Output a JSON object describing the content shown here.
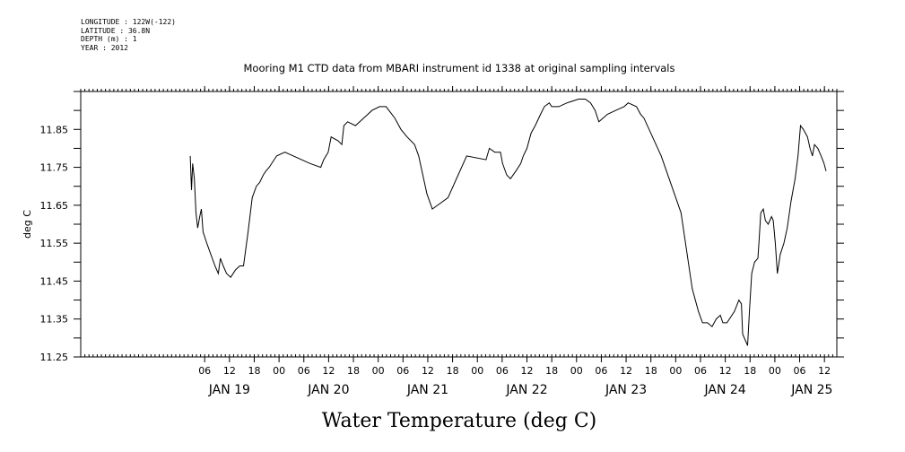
{
  "metadata": {
    "longitude": "LONGITUDE : 122W(-122)",
    "latitude": "LATITUDE : 36.8N",
    "depth": "DEPTH (m) : 1",
    "year": "YEAR : 2012"
  },
  "chart_data": {
    "type": "line",
    "title": "Mooring M1 CTD data from MBARI instrument id 1338 at original sampling intervals",
    "xlabel": "Water Temperature (deg C)",
    "ylabel": "deg C",
    "x_units": "hours since JAN 19 00:00",
    "xlim": [
      -24,
      159
    ],
    "ylim": [
      11.25,
      11.95
    ],
    "yticks": [
      11.25,
      11.35,
      11.45,
      11.55,
      11.65,
      11.75,
      11.85
    ],
    "ytick_labels": [
      "11.25",
      "11.35",
      "11.45",
      "11.55",
      "11.65",
      "11.75",
      "11.85"
    ],
    "hour_ticks": [
      {
        "x": 6,
        "label": "06"
      },
      {
        "x": 12,
        "label": "12"
      },
      {
        "x": 18,
        "label": "18"
      },
      {
        "x": 24,
        "label": "00"
      },
      {
        "x": 30,
        "label": "06"
      },
      {
        "x": 36,
        "label": "12"
      },
      {
        "x": 42,
        "label": "18"
      },
      {
        "x": 48,
        "label": "00"
      },
      {
        "x": 54,
        "label": "06"
      },
      {
        "x": 60,
        "label": "12"
      },
      {
        "x": 66,
        "label": "18"
      },
      {
        "x": 72,
        "label": "00"
      },
      {
        "x": 78,
        "label": "06"
      },
      {
        "x": 84,
        "label": "12"
      },
      {
        "x": 90,
        "label": "18"
      },
      {
        "x": 96,
        "label": "00"
      },
      {
        "x": 102,
        "label": "06"
      },
      {
        "x": 108,
        "label": "12"
      },
      {
        "x": 114,
        "label": "18"
      },
      {
        "x": 120,
        "label": "00"
      },
      {
        "x": 126,
        "label": "06"
      },
      {
        "x": 132,
        "label": "12"
      },
      {
        "x": 138,
        "label": "18"
      },
      {
        "x": 144,
        "label": "00"
      },
      {
        "x": 150,
        "label": "06"
      },
      {
        "x": 156,
        "label": "12"
      }
    ],
    "day_labels": [
      {
        "x": 12,
        "label": "JAN 19"
      },
      {
        "x": 36,
        "label": "JAN 20"
      },
      {
        "x": 60,
        "label": "JAN 21"
      },
      {
        "x": 84,
        "label": "JAN 22"
      },
      {
        "x": 108,
        "label": "JAN 23"
      },
      {
        "x": 132,
        "label": "JAN 24"
      },
      {
        "x": 153,
        "label": "JAN 25"
      }
    ],
    "grid": false,
    "series": [
      {
        "points": [
          [
            2.5,
            11.78
          ],
          [
            2.8,
            11.69
          ],
          [
            3.1,
            11.76
          ],
          [
            3.5,
            11.72
          ],
          [
            3.9,
            11.63
          ],
          [
            4.3,
            11.59
          ],
          [
            4.8,
            11.62
          ],
          [
            5.2,
            11.64
          ],
          [
            5.6,
            11.58
          ],
          [
            6.5,
            11.55
          ],
          [
            7.5,
            11.52
          ],
          [
            8.5,
            11.49
          ],
          [
            9.3,
            11.47
          ],
          [
            9.8,
            11.51
          ],
          [
            10.5,
            11.49
          ],
          [
            11.3,
            11.47
          ],
          [
            12.3,
            11.46
          ],
          [
            13.5,
            11.48
          ],
          [
            14.5,
            11.49
          ],
          [
            15.4,
            11.49
          ],
          [
            16.5,
            11.58
          ],
          [
            17.5,
            11.67
          ],
          [
            18.5,
            11.7
          ],
          [
            19.3,
            11.71
          ],
          [
            20.2,
            11.73
          ],
          [
            20.8,
            11.74
          ],
          [
            21.6,
            11.75
          ],
          [
            23.4,
            11.78
          ],
          [
            25.4,
            11.79
          ],
          [
            31.5,
            11.76
          ],
          [
            34.1,
            11.75
          ],
          [
            34.8,
            11.77
          ],
          [
            35.9,
            11.79
          ],
          [
            36.6,
            11.83
          ],
          [
            38.3,
            11.82
          ],
          [
            39.2,
            11.81
          ],
          [
            39.7,
            11.86
          ],
          [
            40.6,
            11.87
          ],
          [
            42.5,
            11.86
          ],
          [
            44.5,
            11.88
          ],
          [
            45.5,
            11.89
          ],
          [
            46.5,
            11.9
          ],
          [
            48.3,
            11.91
          ],
          [
            49.9,
            11.91
          ],
          [
            52.0,
            11.88
          ],
          [
            53.5,
            11.85
          ],
          [
            55.0,
            11.83
          ],
          [
            56.8,
            11.81
          ],
          [
            57.8,
            11.78
          ],
          [
            59.8,
            11.68
          ],
          [
            61.1,
            11.64
          ],
          [
            64.9,
            11.67
          ],
          [
            69.4,
            11.78
          ],
          [
            74.1,
            11.77
          ],
          [
            74.9,
            11.8
          ],
          [
            76.2,
            11.79
          ],
          [
            77.6,
            11.79
          ],
          [
            78.1,
            11.76
          ],
          [
            79.1,
            11.73
          ],
          [
            80.0,
            11.72
          ],
          [
            81.3,
            11.74
          ],
          [
            82.5,
            11.76
          ],
          [
            83.1,
            11.78
          ],
          [
            84.0,
            11.8
          ],
          [
            85.0,
            11.84
          ],
          [
            86.0,
            11.86
          ],
          [
            87.3,
            11.89
          ],
          [
            88.2,
            11.91
          ],
          [
            89.4,
            11.92
          ],
          [
            90.0,
            11.91
          ],
          [
            91.7,
            11.91
          ],
          [
            93.7,
            11.92
          ],
          [
            96.5,
            11.93
          ],
          [
            98.1,
            11.93
          ],
          [
            99.4,
            11.92
          ],
          [
            100.5,
            11.9
          ],
          [
            101.4,
            11.87
          ],
          [
            103.5,
            11.89
          ],
          [
            105.5,
            11.9
          ],
          [
            107.5,
            11.91
          ],
          [
            108.5,
            11.92
          ],
          [
            110.5,
            11.91
          ],
          [
            111.5,
            11.89
          ],
          [
            112.3,
            11.88
          ],
          [
            116.5,
            11.78
          ],
          [
            121.3,
            11.63
          ],
          [
            124.0,
            11.43
          ],
          [
            125.5,
            11.37
          ],
          [
            126.5,
            11.34
          ],
          [
            127.7,
            11.34
          ],
          [
            128.8,
            11.33
          ],
          [
            129.8,
            11.35
          ],
          [
            130.8,
            11.36
          ],
          [
            131.4,
            11.34
          ],
          [
            132.4,
            11.34
          ],
          [
            134.2,
            11.37
          ],
          [
            135.3,
            11.4
          ],
          [
            135.9,
            11.39
          ],
          [
            136.2,
            11.31
          ],
          [
            137.4,
            11.28
          ],
          [
            137.9,
            11.38
          ],
          [
            138.4,
            11.47
          ],
          [
            139.1,
            11.5
          ],
          [
            139.9,
            11.51
          ],
          [
            140.2,
            11.56
          ],
          [
            140.6,
            11.63
          ],
          [
            141.2,
            11.64
          ],
          [
            141.7,
            11.61
          ],
          [
            142.4,
            11.6
          ],
          [
            143.2,
            11.62
          ],
          [
            143.6,
            11.61
          ],
          [
            144.1,
            11.55
          ],
          [
            144.6,
            11.47
          ],
          [
            145.3,
            11.52
          ],
          [
            146.2,
            11.55
          ],
          [
            147.0,
            11.59
          ],
          [
            147.9,
            11.66
          ],
          [
            148.4,
            11.69
          ],
          [
            148.9,
            11.72
          ],
          [
            149.6,
            11.78
          ],
          [
            150.2,
            11.86
          ],
          [
            150.9,
            11.85
          ],
          [
            151.9,
            11.83
          ],
          [
            152.5,
            11.8
          ],
          [
            153.1,
            11.78
          ],
          [
            153.6,
            11.81
          ],
          [
            154.4,
            11.8
          ],
          [
            155.2,
            11.78
          ],
          [
            155.9,
            11.76
          ],
          [
            156.4,
            11.74
          ]
        ]
      }
    ]
  }
}
